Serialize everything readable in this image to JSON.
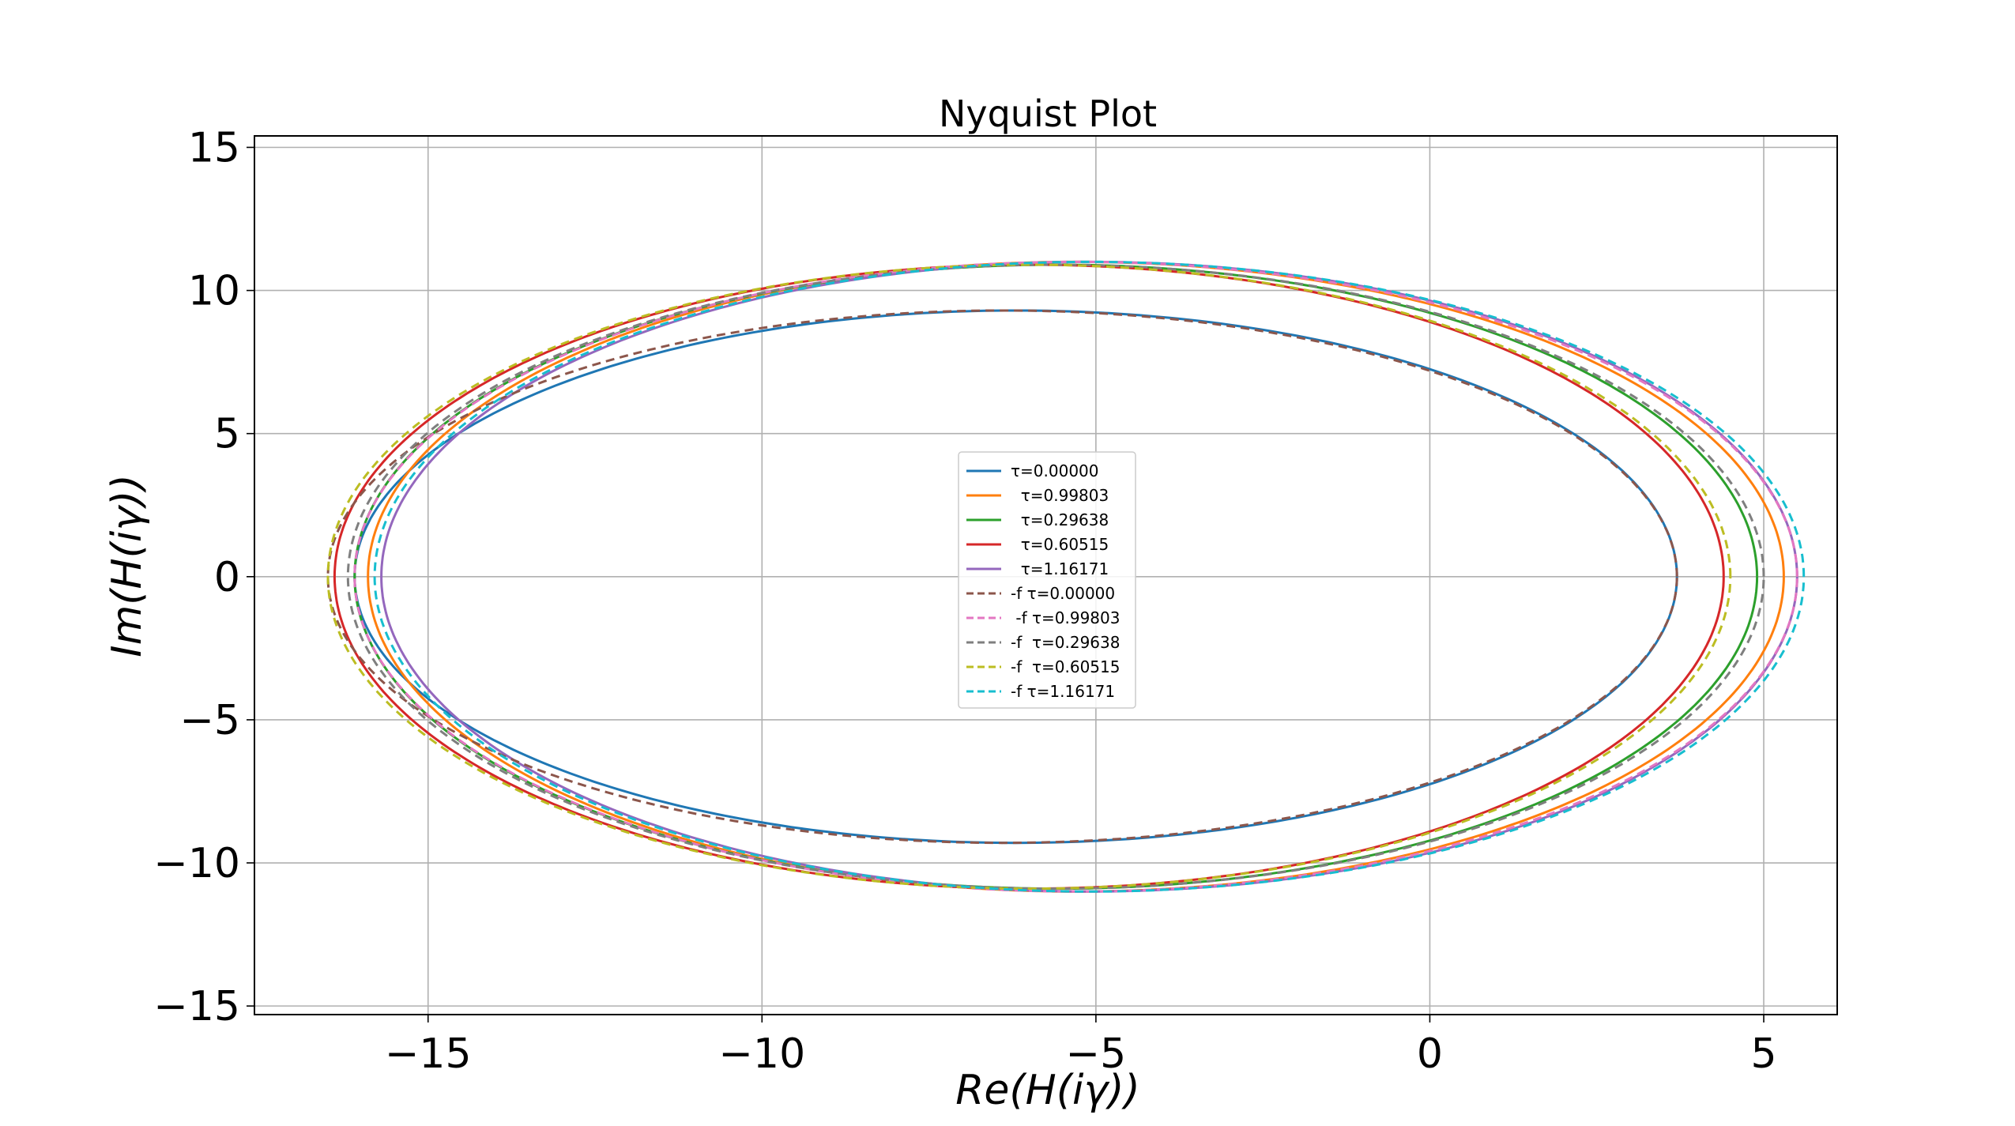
{
  "chart_data": {
    "type": "line",
    "title": "Nyquist Plot",
    "xlabel": "Re(H(iγ))",
    "ylabel": "Im(H(iγ))",
    "xlim": [
      -17.6,
      6.1
    ],
    "ylim": [
      -15.3,
      15.4
    ],
    "xticks": [
      -15,
      -10,
      -5,
      0,
      5
    ],
    "yticks": [
      -15,
      -10,
      -5,
      0,
      5,
      10,
      15
    ],
    "xtick_labels": [
      "−15",
      "−10",
      "−5",
      "0",
      "5"
    ],
    "ytick_labels": [
      "−15",
      "−10",
      "−5",
      "0",
      "5",
      "10",
      "15"
    ],
    "grid": true,
    "legend_position": "center",
    "series": [
      {
        "name": "τ=0.00000",
        "color": "#1f77b4",
        "dash": "solid",
        "ellipse": {
          "cx": -6.2,
          "a": 9.9,
          "b": 9.3
        }
      },
      {
        "name": "  τ=0.99803",
        "color": "#ff7f0e",
        "dash": "solid",
        "ellipse": {
          "cx": -5.3,
          "a": 10.6,
          "b": 11.0
        }
      },
      {
        "name": "  τ=0.29638",
        "color": "#2ca02c",
        "dash": "solid",
        "ellipse": {
          "cx": -5.6,
          "a": 10.5,
          "b": 10.9
        }
      },
      {
        "name": "  τ=0.60515",
        "color": "#d62728",
        "dash": "solid",
        "ellipse": {
          "cx": -6.0,
          "a": 10.4,
          "b": 10.9
        }
      },
      {
        "name": "  τ=1.16171",
        "color": "#9467bd",
        "dash": "solid",
        "ellipse": {
          "cx": -5.1,
          "a": 10.6,
          "b": 11.0
        }
      },
      {
        "name": "-f τ=0.00000",
        "color": "#8c564b",
        "dash": "dashed",
        "ellipse": {
          "cx": -6.4,
          "a": 10.1,
          "b": 9.3
        }
      },
      {
        "name": " -f τ=0.99803",
        "color": "#e377c2",
        "dash": "dashed",
        "ellipse": {
          "cx": -5.3,
          "a": 10.8,
          "b": 11.0
        }
      },
      {
        "name": "-f  τ=0.29638",
        "color": "#7f7f7f",
        "dash": "dashed",
        "ellipse": {
          "cx": -5.6,
          "a": 10.6,
          "b": 10.9
        }
      },
      {
        "name": "-f  τ=0.60515",
        "color": "#bcbd22",
        "dash": "dashed",
        "ellipse": {
          "cx": -6.0,
          "a": 10.5,
          "b": 10.9
        }
      },
      {
        "name": "-f τ=1.16171",
        "color": "#17becf",
        "dash": "dashed",
        "ellipse": {
          "cx": -5.1,
          "a": 10.7,
          "b": 11.0
        }
      }
    ]
  }
}
